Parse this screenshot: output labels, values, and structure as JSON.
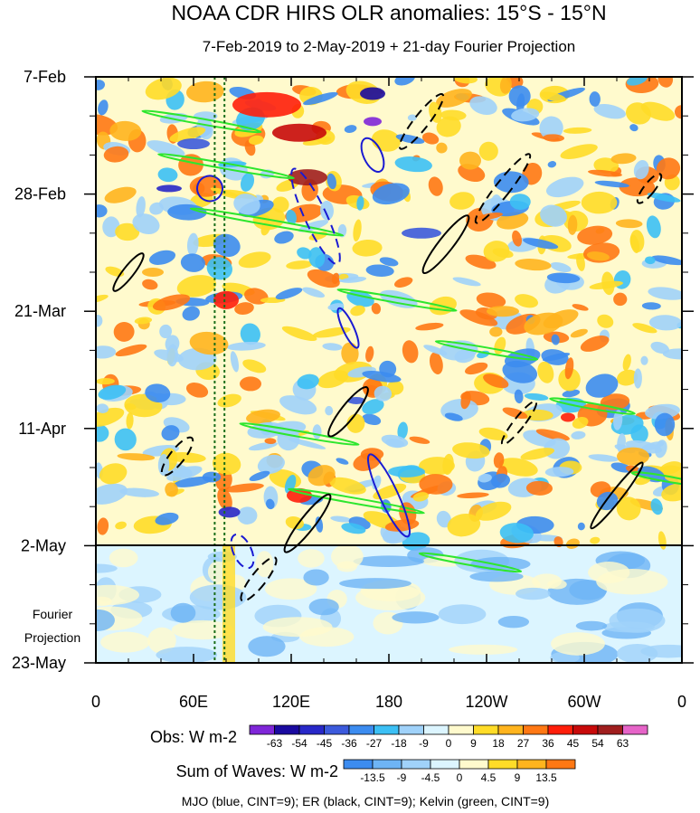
{
  "chart_data": {
    "type": "heatmap",
    "title": "NOAA CDR HIRS OLR anomalies: 15°S - 15°N",
    "subtitle": "7-Feb-2019 to 2-May-2019 + 21-day Fourier Projection",
    "x_tick_labels": [
      "0",
      "60E",
      "120E",
      "180",
      "120W",
      "60W",
      "0"
    ],
    "x_range_deg_east": [
      0,
      360
    ],
    "y_tick_labels": [
      "7-Feb",
      "28-Feb",
      "21-Mar",
      "11-Apr",
      "2-May",
      "23-May"
    ],
    "y_range_days": [
      0,
      105
    ],
    "observation_end_label": "2-May",
    "projection_label": [
      "Fourier",
      "Projection"
    ],
    "obs_colorbar": {
      "label": "Obs: W m-2",
      "levels": [
        "-63",
        "-54",
        "-45",
        "-36",
        "-27",
        "-18",
        "-9",
        "0",
        "9",
        "18",
        "27",
        "36",
        "45",
        "54",
        "63"
      ],
      "colors": [
        "#7f26d8",
        "#1a0aa0",
        "#2828c8",
        "#3c5adc",
        "#3c8cf0",
        "#3cc0f5",
        "#a0d2fa",
        "#dcf5ff",
        "#fffacd",
        "#ffdc28",
        "#ffb41e",
        "#ff7814",
        "#ff1e0a",
        "#c80a0a",
        "#a01e1e",
        "#e664c8"
      ]
    },
    "waves_colorbar": {
      "label": "Sum of Waves: W m-2",
      "levels": [
        "-13.5",
        "-9",
        "-4.5",
        "0",
        "4.5",
        "9",
        "13.5"
      ],
      "colors": [
        "#3c8cf0",
        "#6eb4f5",
        "#a0d2fa",
        "#dcf5ff",
        "#fffacd",
        "#ffdc28",
        "#ffb41e",
        "#ff7814"
      ]
    },
    "footer": "MJO (blue, CINT=9); ER (black, CINT=9); Kelvin (green, CINT=9)",
    "reference_lines_deg_east": [
      73,
      79
    ],
    "wave_colors": {
      "mjo": "#1a1ad2",
      "er": "#000000",
      "kelvin": "#2ee62e"
    }
  }
}
